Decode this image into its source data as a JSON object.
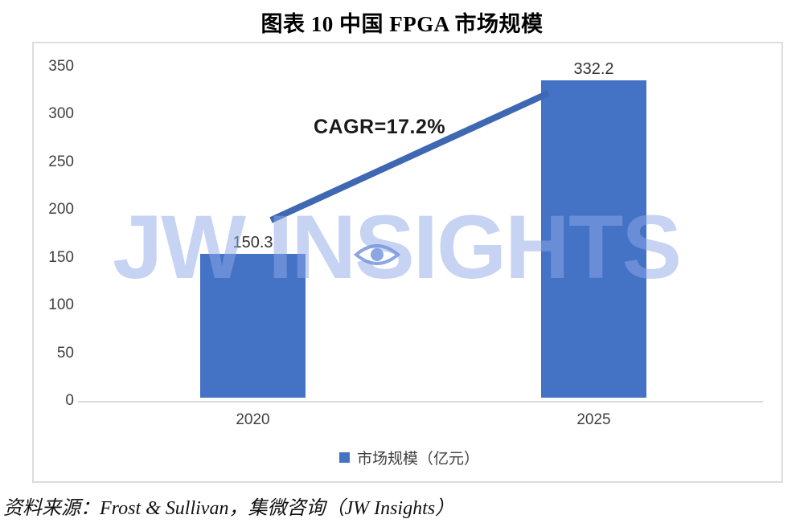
{
  "page": {
    "source": "资料来源：Frost & Sullivan，集微咨询（JW Insights）"
  },
  "chart_data": {
    "type": "bar",
    "title": "图表 10 中国 FPGA 市场规模",
    "categories": [
      "2020",
      "2025"
    ],
    "series": [
      {
        "name": "市场规模（亿元）",
        "values": [
          150.3,
          332.2
        ]
      }
    ],
    "data_labels": [
      "150.3",
      "332.2"
    ],
    "annotation": "CAGR=17.2%",
    "xlabel": "",
    "ylabel": "",
    "ylim": [
      0,
      350
    ],
    "ytick_step": 50,
    "ytick_labels_top_to_bottom": [
      "350",
      "300",
      "250",
      "200",
      "150",
      "100",
      "50",
      "0"
    ],
    "grid": false,
    "legend_position": "bottom-center",
    "colors": {
      "bar": "#4472C4",
      "trend_line": "#3E68B2",
      "axis_line": "#D9D9D9",
      "tick_text": "#404040",
      "watermark": "#8DA7E7"
    }
  },
  "legend": {
    "label": "市场规模（亿元）"
  },
  "watermark": {
    "text": "JW INSIGHTS"
  }
}
